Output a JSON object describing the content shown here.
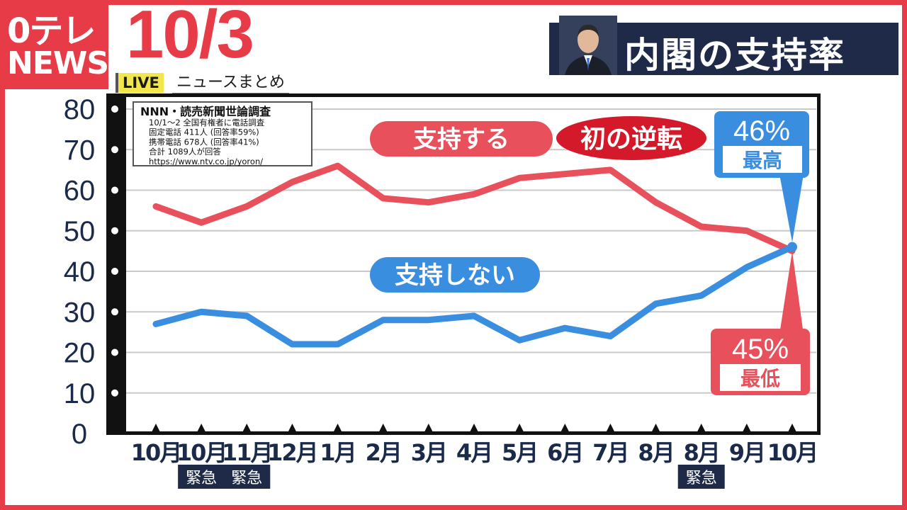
{
  "header": {
    "logo_line1": "0テレ",
    "logo_line2": "NEWS",
    "date": "10/3",
    "live_label": "LIVE",
    "subtitle": "ニュースまとめ",
    "title": "内閣の支持率"
  },
  "source_box": {
    "lines": [
      "NNN・読売新聞世論調査",
      "10/1〜2 全国有権者に電話調査",
      "固定電話 411人 (回答率59%)",
      "携帯電話 678人 (回答率41%)",
      "合計 1089人が回答",
      "https://www.ntv.co.jp/yoron/"
    ]
  },
  "annotations": {
    "reversal": "初の逆転",
    "high_value": "46%",
    "high_label": "最高",
    "low_value": "45%",
    "low_label": "最低"
  },
  "chart_data": {
    "type": "line",
    "categories": [
      "10月",
      "10月",
      "11月",
      "12月",
      "1月",
      "2月",
      "3月",
      "4月",
      "5月",
      "6月",
      "7月",
      "8月",
      "8月",
      "9月",
      "10月"
    ],
    "category_notes": [
      "",
      "緊急",
      "緊急",
      "",
      "",
      "",
      "",
      "",
      "",
      "",
      "",
      "",
      "緊急",
      "",
      ""
    ],
    "yticks": [
      "0",
      "10",
      "20",
      "30",
      "40",
      "50",
      "60",
      "70",
      "80"
    ],
    "ylim": [
      0,
      80
    ],
    "grid": true,
    "series": [
      {
        "name": "支持する",
        "color": "#e8505b",
        "values": [
          56,
          52,
          56,
          62,
          66,
          58,
          57,
          59,
          63,
          64,
          65,
          57,
          51,
          50,
          45
        ]
      },
      {
        "name": "支持しない",
        "color": "#3a8ee0",
        "values": [
          27,
          30,
          29,
          22,
          22,
          28,
          28,
          29,
          23,
          26,
          24,
          32,
          34,
          41,
          46
        ]
      }
    ]
  }
}
